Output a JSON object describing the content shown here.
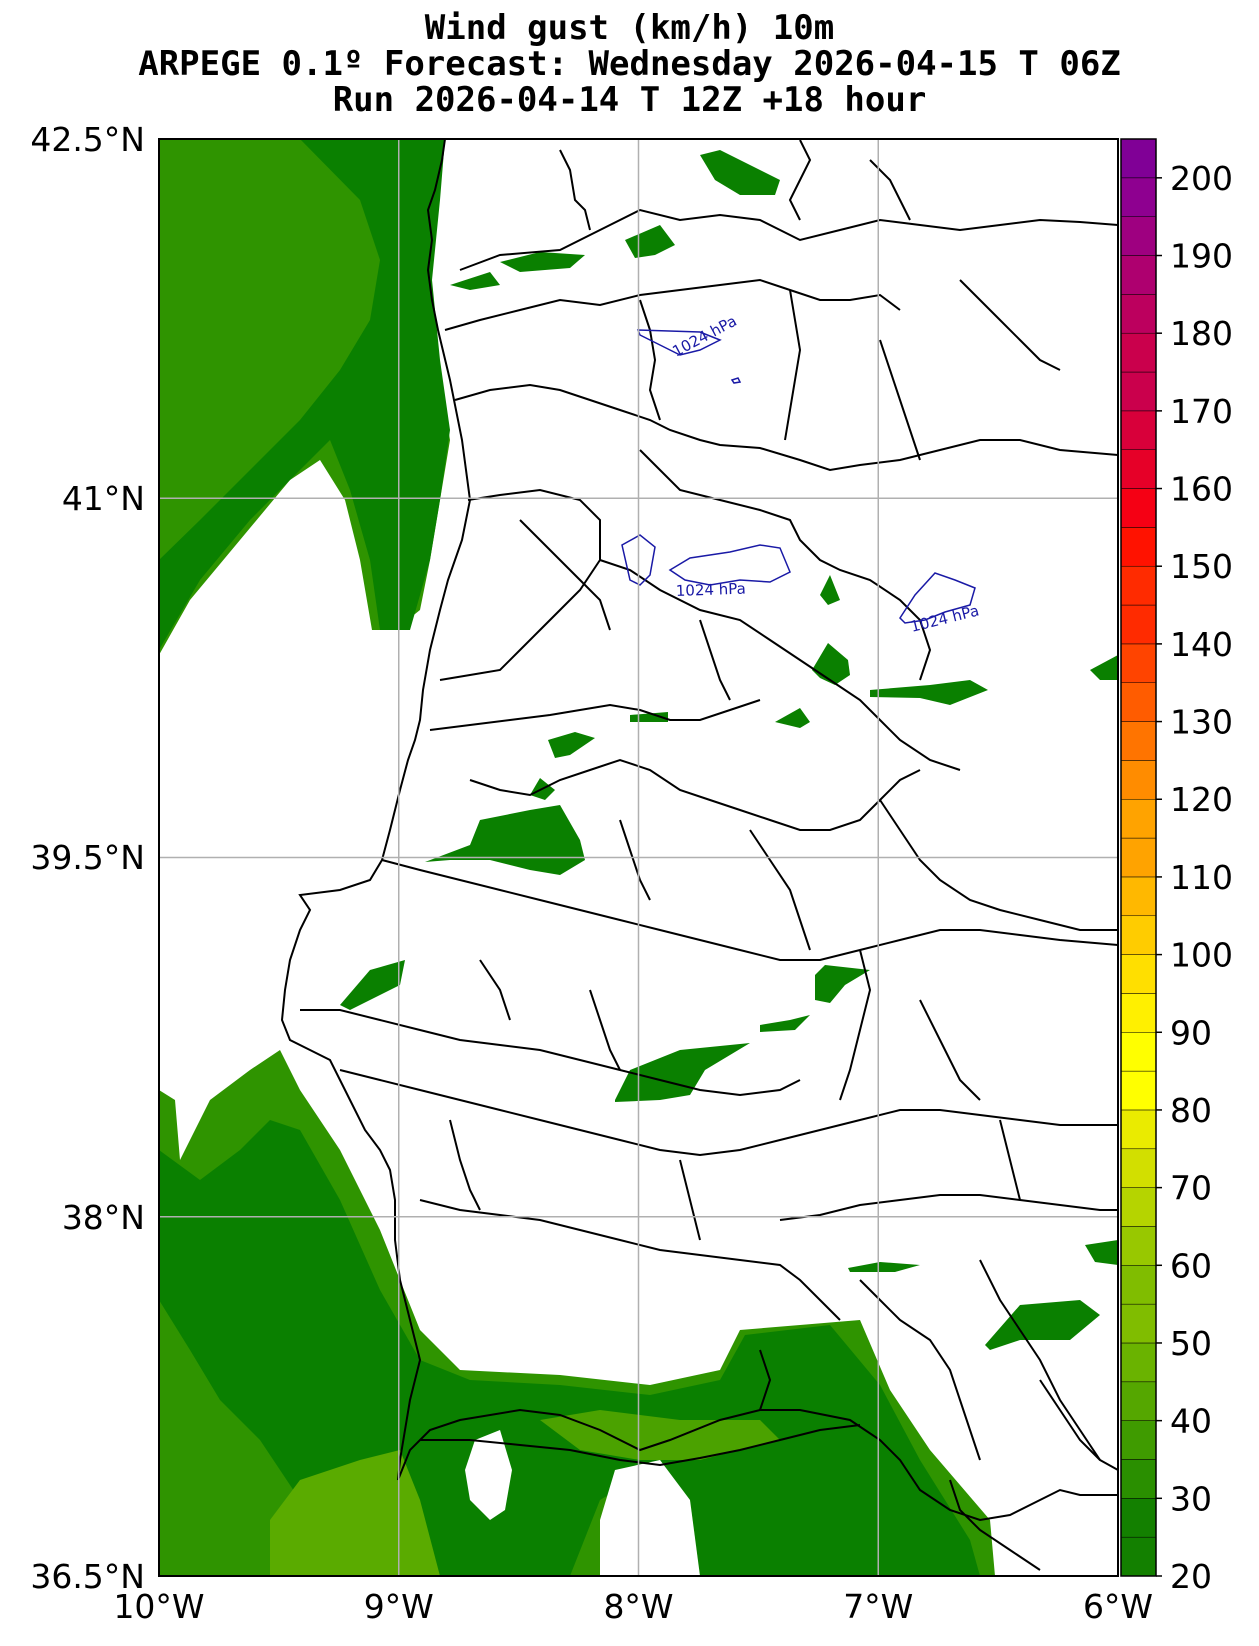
{
  "title": {
    "line1": "Wind gust (km/h) 10m",
    "line2": "ARPEGE 0.1º Forecast: Wednesday 2026-04-15 T 06Z",
    "line3": "Run 2026-04-14 T 12Z +18 hour"
  },
  "map": {
    "lon_range": [
      -10,
      -6
    ],
    "lat_range": [
      36.5,
      42.5
    ],
    "x_ticks": [
      "10°W",
      "9°W",
      "8°W",
      "7°W",
      "6°W"
    ],
    "y_ticks": [
      "42.5°N",
      "41°N",
      "39.5°N",
      "38°N",
      "36.5°N"
    ],
    "grid": true,
    "land_color": "#ffffff",
    "gust_colors": {
      "20-30": "#0a8000",
      "30-40": "#2f9400",
      "40-50": "#5aab00"
    }
  },
  "isobars": [
    {
      "label": "1024 hPa",
      "place": "north"
    },
    {
      "label": "1024 hPa",
      "place": "center"
    },
    {
      "label": "1024 hPa",
      "place": "east"
    }
  ],
  "colorbar": {
    "min": 20,
    "max": 205,
    "step": 5,
    "labels": [
      "200",
      "190",
      "180",
      "170",
      "160",
      "150",
      "140",
      "130",
      "120",
      "110",
      "100",
      "90",
      "80",
      "70",
      "60",
      "50",
      "40",
      "30",
      "20"
    ],
    "colors": [
      "#138000",
      "#2a8f00",
      "#3f9b00",
      "#55a700",
      "#6ab300",
      "#80bd00",
      "#98c800",
      "#b5d400",
      "#d2df00",
      "#eaeb00",
      "#ffff00",
      "#fff000",
      "#ffdf00",
      "#ffcc00",
      "#ffb800",
      "#ffa300",
      "#ff8c00",
      "#ff7400",
      "#ff5c00",
      "#ff4400",
      "#ff2b00",
      "#ff1200",
      "#f50014",
      "#e60028",
      "#d8003a",
      "#ca004c",
      "#bc005e",
      "#ae006f",
      "#9e0080",
      "#8e0090",
      "#800096"
    ]
  }
}
